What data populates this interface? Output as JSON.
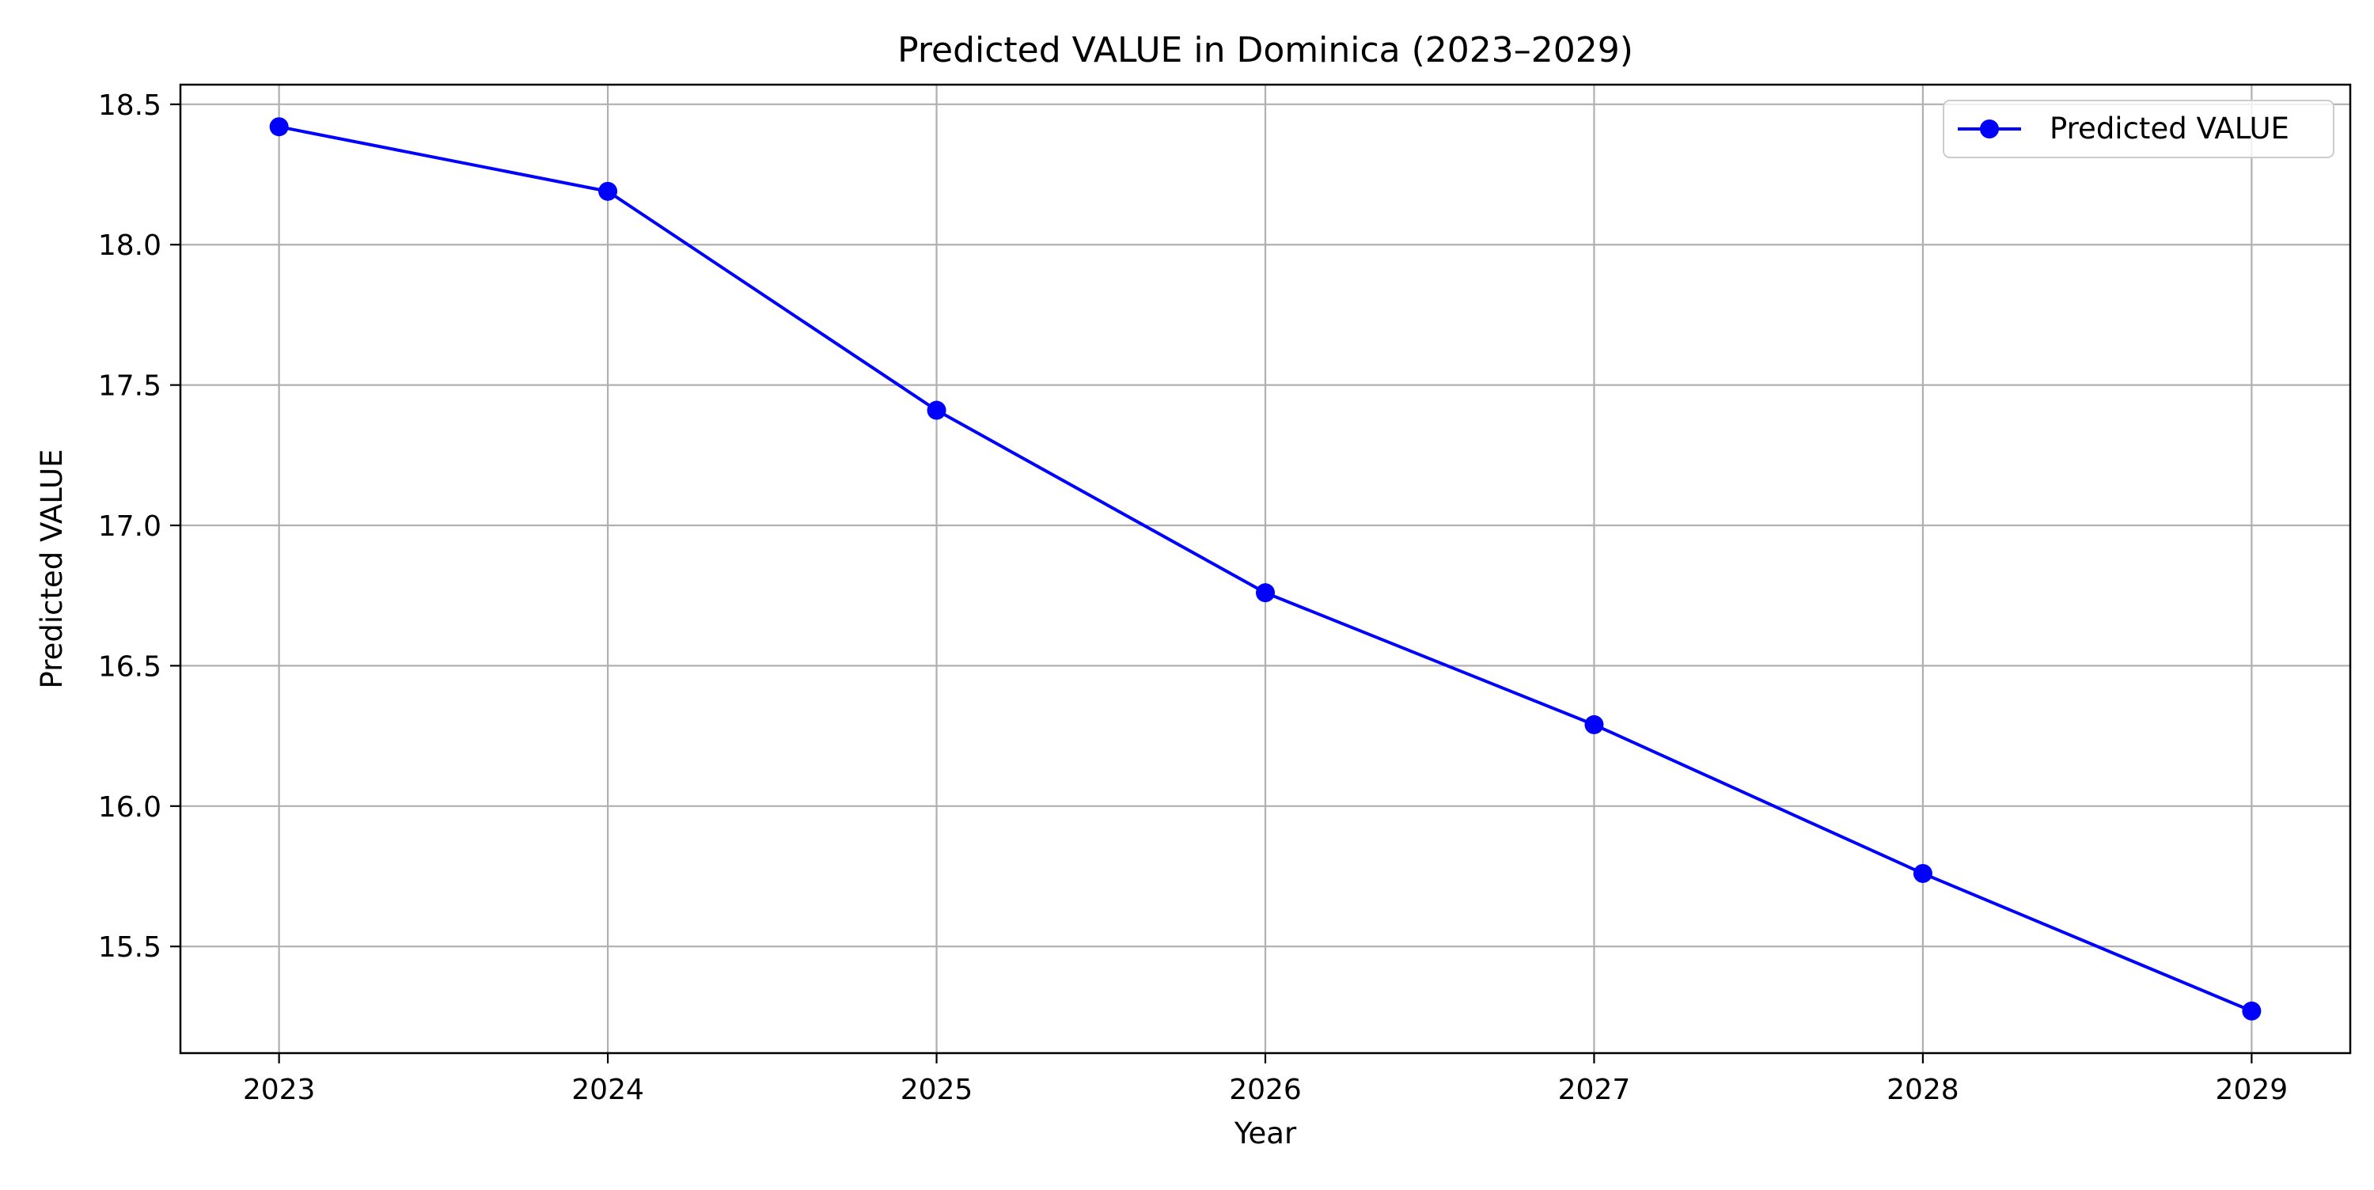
{
  "chart_data": {
    "type": "line",
    "title": "Predicted VALUE in Dominica (2023–2029)",
    "xlabel": "Year",
    "ylabel": "Predicted VALUE",
    "x": [
      2023,
      2024,
      2025,
      2026,
      2027,
      2028,
      2029
    ],
    "series": [
      {
        "name": "Predicted VALUE",
        "values": [
          18.42,
          18.19,
          17.41,
          16.76,
          16.29,
          15.76,
          15.27
        ],
        "color": "#0000ff",
        "marker": "circle"
      }
    ],
    "xlim": [
      2022.7,
      2029.3
    ],
    "ylim": [
      15.12,
      18.57
    ],
    "x_ticks": [
      "2023",
      "2024",
      "2025",
      "2026",
      "2027",
      "2028",
      "2029"
    ],
    "y_ticks": [
      "15.5",
      "16.0",
      "16.5",
      "17.0",
      "17.5",
      "18.0",
      "18.5"
    ],
    "grid": true,
    "grid_color": "#b0b0b0",
    "legend_position": "top-right"
  }
}
